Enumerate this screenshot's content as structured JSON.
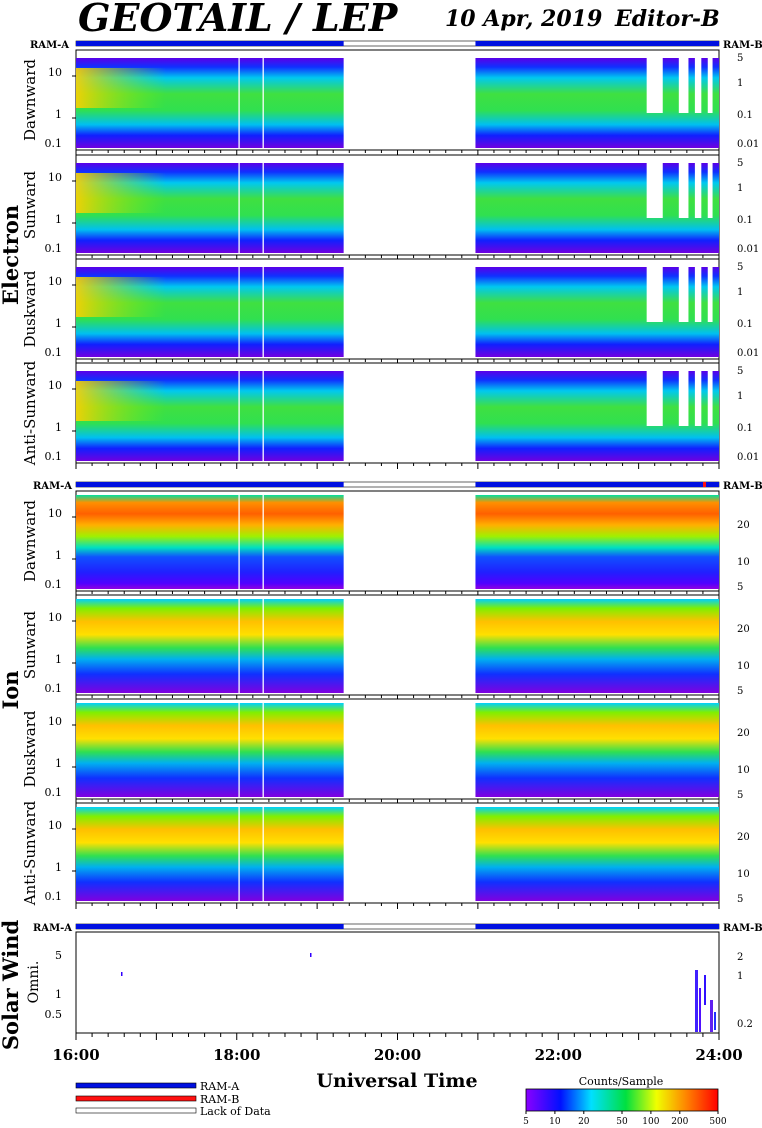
{
  "header": {
    "title": "GEOTAIL / LEP",
    "date": "10 Apr, 2019",
    "editor": "Editor-B"
  },
  "chart_data": {
    "type": "heatmap",
    "time_axis": {
      "label": "Universal Time",
      "ticks": [
        "16:00",
        "18:00",
        "20:00",
        "22:00",
        "24:00"
      ],
      "range_hours": [
        16,
        24
      ]
    },
    "mode_bars": {
      "left_label": "RAM-A",
      "right_label": "RAM-B",
      "data_segments_hours": [
        [
          16.0,
          19.33
        ],
        [
          20.97,
          24.0
        ]
      ]
    },
    "groups": [
      {
        "name": "Electron",
        "panels": [
          "Dawnward",
          "Sunward",
          "Duskward",
          "Anti-Sunward"
        ],
        "left_ticks": [
          "10",
          "1",
          "0.1"
        ],
        "right_ticks": [
          "5",
          "1",
          "0.1",
          "0.01"
        ]
      },
      {
        "name": "Ion",
        "panels": [
          "Dawnward",
          "Sunward",
          "Duskward",
          "Anti-Sunward"
        ],
        "left_ticks": [
          "10",
          "1",
          "0.1"
        ],
        "right_ticks": [
          "20",
          "10",
          "5"
        ]
      },
      {
        "name": "Solar Wind",
        "panels": [
          "Omni."
        ],
        "left_ticks": [
          "5",
          "1",
          "0.5"
        ],
        "right_ticks": [
          "2",
          "1",
          "0.2"
        ]
      }
    ],
    "legend": {
      "items": [
        "RAM-A",
        "RAM-B",
        "Lack of Data"
      ],
      "colors": [
        "#0010ff",
        "#ff1010",
        "#ffffff"
      ]
    },
    "colorbar": {
      "title": "Counts/Sample",
      "ticks": [
        "5",
        "10",
        "20",
        "50",
        "100",
        "200",
        "500"
      ],
      "range": [
        5,
        500
      ],
      "scale": "log"
    }
  }
}
